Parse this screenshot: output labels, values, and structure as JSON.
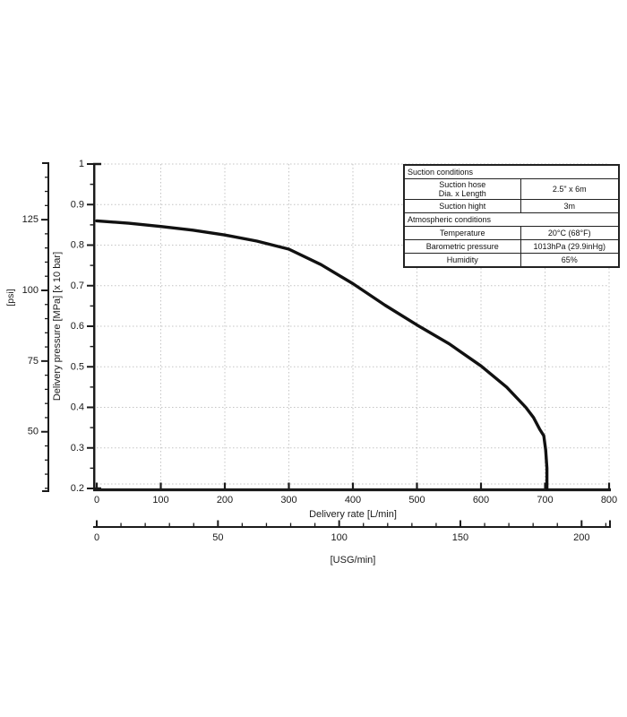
{
  "page": {
    "background": "#ffffff"
  },
  "chart_data": {
    "type": "line",
    "title": "",
    "grid": true,
    "grid_color": "#c4c4c4",
    "axis_color": "#1a1a1a",
    "x_axis": {
      "title": "Delivery rate [L/min]",
      "min": 0,
      "max": 800,
      "major_ticks": [
        0,
        100,
        200,
        300,
        400,
        500,
        600,
        700,
        800
      ],
      "tick_labels": [
        "0",
        "100",
        "200",
        "300",
        "400",
        "500",
        "600",
        "700",
        "800"
      ]
    },
    "x_axis_secondary": {
      "title": "[USG/min]",
      "min": 0,
      "max": 211,
      "liters_per_unit": 3.78541,
      "major_ticks": [
        0,
        50,
        100,
        150,
        200
      ],
      "tick_labels": [
        "0",
        "50",
        "100",
        "150",
        "200"
      ],
      "minor_step": 10
    },
    "y_axis": {
      "title": "Delivery pressure [MPa] [x 10 bar]",
      "min": 0.2,
      "max": 1.0,
      "major_ticks": [
        1,
        0.9,
        0.8,
        0.7,
        0.6,
        0.5,
        0.4,
        0.3,
        0.2
      ],
      "tick_labels": [
        "1",
        "0.9",
        "0.8",
        "0.7",
        "0.6",
        "0.5",
        "0.4",
        "0.3",
        "0.2"
      ],
      "minor_step": 0.05
    },
    "y_axis_secondary": {
      "title": "[psi]",
      "min": 29,
      "max": 145,
      "major_ticks": [
        125,
        100,
        75,
        50
      ],
      "tick_labels": [
        "125",
        "100",
        "75",
        "50"
      ],
      "minor_step": 5
    },
    "series": [
      {
        "name": "pump-delivery-curve",
        "color": "#111111",
        "points": [
          [
            0,
            0.86
          ],
          [
            50,
            0.854
          ],
          [
            100,
            0.846
          ],
          [
            150,
            0.837
          ],
          [
            200,
            0.825
          ],
          [
            250,
            0.81
          ],
          [
            300,
            0.79
          ],
          [
            350,
            0.752
          ],
          [
            400,
            0.705
          ],
          [
            450,
            0.652
          ],
          [
            500,
            0.603
          ],
          [
            550,
            0.557
          ],
          [
            600,
            0.502
          ],
          [
            640,
            0.45
          ],
          [
            670,
            0.4
          ],
          [
            682,
            0.375
          ],
          [
            692,
            0.345
          ],
          [
            698,
            0.33
          ],
          [
            701,
            0.295
          ],
          [
            703,
            0.25
          ],
          [
            703,
            0.2
          ]
        ]
      }
    ]
  },
  "conditions_table": {
    "sections": [
      {
        "header": "Suction conditions",
        "rows": [
          {
            "label_line1": "Suction hose",
            "label_line2": "Dia. x Length",
            "value": "2.5\" x 6m"
          },
          {
            "label_line1": "Suction hight",
            "label_line2": "",
            "value": "3m"
          }
        ]
      },
      {
        "header": "Atmospheric conditions",
        "rows": [
          {
            "label_line1": "Temperature",
            "label_line2": "",
            "value": "20°C (68°F)"
          },
          {
            "label_line1": "Barometric pressure",
            "label_line2": "",
            "value": "1013hPa (29.9inHg)"
          },
          {
            "label_line1": "Humidity",
            "label_line2": "",
            "value": "65%"
          }
        ]
      }
    ]
  }
}
